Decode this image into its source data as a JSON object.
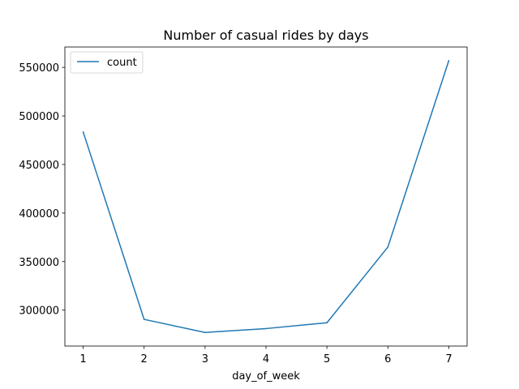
{
  "chart_data": {
    "type": "line",
    "title": "Number of casual rides by days",
    "xlabel": "day_of_week",
    "ylabel": "",
    "x": [
      1,
      2,
      3,
      4,
      5,
      6,
      7
    ],
    "series": [
      {
        "name": "count",
        "values": [
          483500,
          290500,
          277000,
          281000,
          287000,
          365000,
          557000
        ],
        "color": "#1f77b4"
      }
    ],
    "xticks": [
      1,
      2,
      3,
      4,
      5,
      6,
      7
    ],
    "yticks": [
      300000,
      350000,
      400000,
      450000,
      500000,
      550000
    ],
    "xlim": [
      0.7,
      7.3
    ],
    "ylim": [
      263000,
      571000
    ],
    "grid": false,
    "legend_position": "upper-left"
  }
}
